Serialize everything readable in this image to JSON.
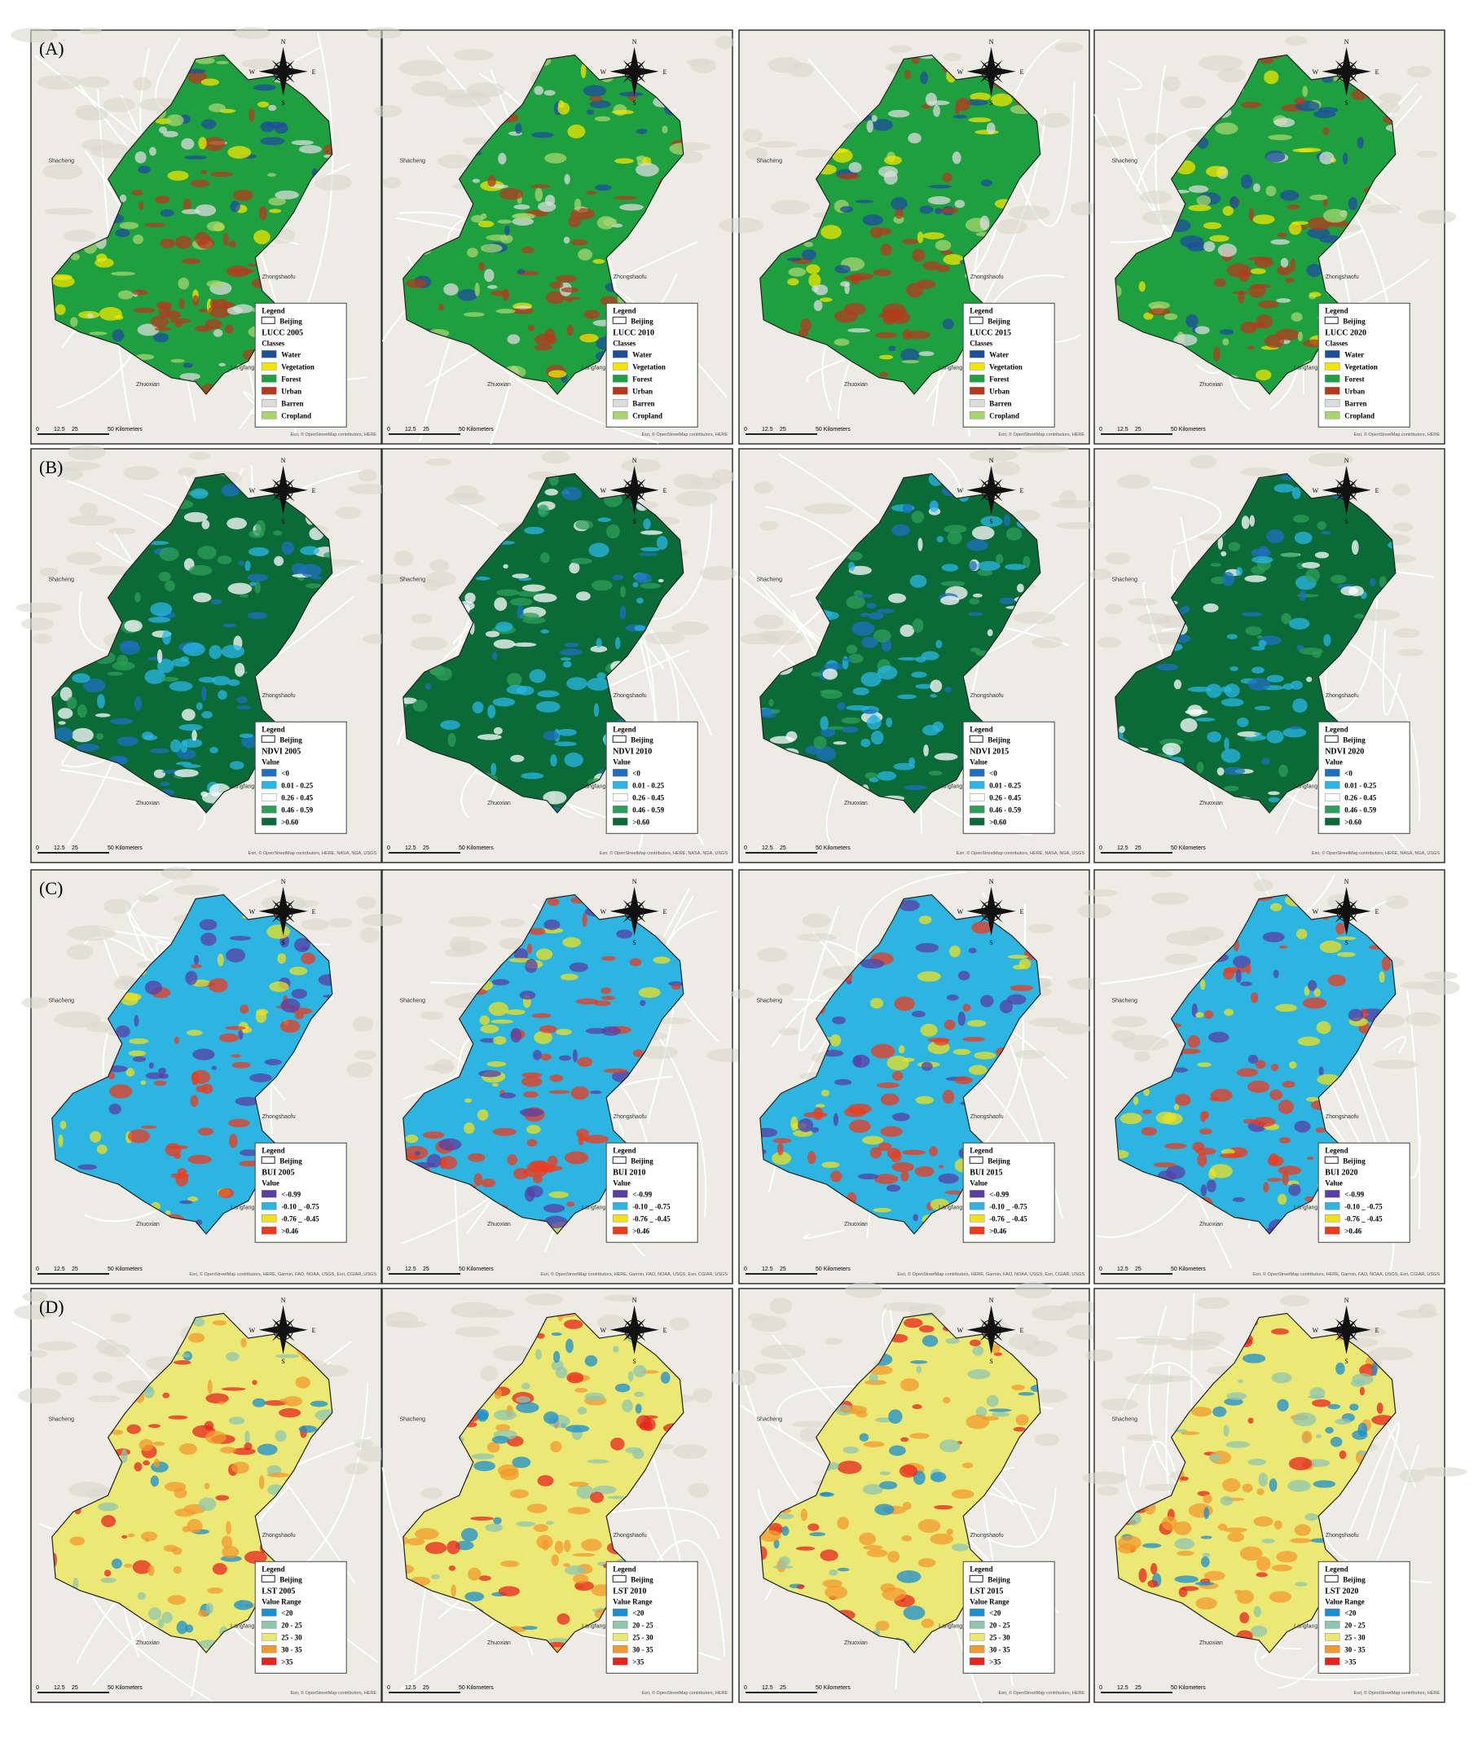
{
  "legend_title": "Legend",
  "boundary_label": "Beijing",
  "compass": {
    "n": "N",
    "s": "S",
    "e": "E",
    "w": "W"
  },
  "scale": [
    "0",
    "12.5",
    "25",
    "50 Kilometers"
  ],
  "places": [
    "Shacheng",
    "Zhuoxian",
    "Langfang",
    "Zhongshaofu"
  ],
  "rows": [
    {
      "label": "(A)",
      "heading": "Classes",
      "attribution": "Esri, © OpenStreetMap contributors, HERE",
      "items": [
        {
          "label": "Water",
          "color": "#1d4e9e"
        },
        {
          "label": "Vegetation",
          "color": "#f2e600"
        },
        {
          "label": "Forest",
          "color": "#1fa040"
        },
        {
          "label": "Urban",
          "color": "#b5391c"
        },
        {
          "label": "Barren",
          "color": "#dcdcdc"
        },
        {
          "label": "Cropland",
          "color": "#a6d66e"
        }
      ],
      "panels": [
        "LUCC 2005",
        "LUCC 2010",
        "LUCC 2015",
        "LUCC 2020"
      ]
    },
    {
      "label": "(B)",
      "heading": "Value",
      "attribution": "Esri, © OpenStreetMap contributors, HERE, NASA, NGA, USGS",
      "items": [
        {
          "label": "<0",
          "color": "#1e6fc0"
        },
        {
          "label": "0.01 - 0.25",
          "color": "#29b6e6"
        },
        {
          "label": "0.26 - 0.45",
          "color": "#ffffff"
        },
        {
          "label": "0.46 - 0.59",
          "color": "#2e9e58"
        },
        {
          "label": ">0.60",
          "color": "#0b6b38"
        }
      ],
      "panels": [
        "NDVI 2005",
        "NDVI 2010",
        "NDVI 2015",
        "NDVI 2020"
      ]
    },
    {
      "label": "(C)",
      "heading": "Value",
      "attribution": "Esri, © OpenStreetMap contributors, HERE, Garmin, FAO, NOAA, USGS, Esri, CGIAR, USGS",
      "items": [
        {
          "label": "<-0.99",
          "color": "#5a3ea6"
        },
        {
          "label": "-0.10 _ -0.75",
          "color": "#2bb5e0"
        },
        {
          "label": "-0.76 _ -0.45",
          "color": "#f0e020"
        },
        {
          "label": ">0.46",
          "color": "#f03a1e"
        }
      ],
      "panels": [
        "BUI 2005",
        "BUI 2010",
        "BUI 2015",
        "BUI 2020"
      ]
    },
    {
      "label": "(D)",
      "heading": "Value Range",
      "attribution": "Esri, © OpenStreetMap contributors, HERE",
      "items": [
        {
          "label": "<20",
          "color": "#1a8fd0"
        },
        {
          "label": "20 - 25",
          "color": "#8ec6b0"
        },
        {
          "label": "25 - 30",
          "color": "#ebe874"
        },
        {
          "label": "30 - 35",
          "color": "#f39a2e"
        },
        {
          "label": ">35",
          "color": "#e8231c"
        }
      ],
      "panels": [
        "LST 2005",
        "LST 2010",
        "LST 2015",
        "LST 2020"
      ]
    }
  ]
}
